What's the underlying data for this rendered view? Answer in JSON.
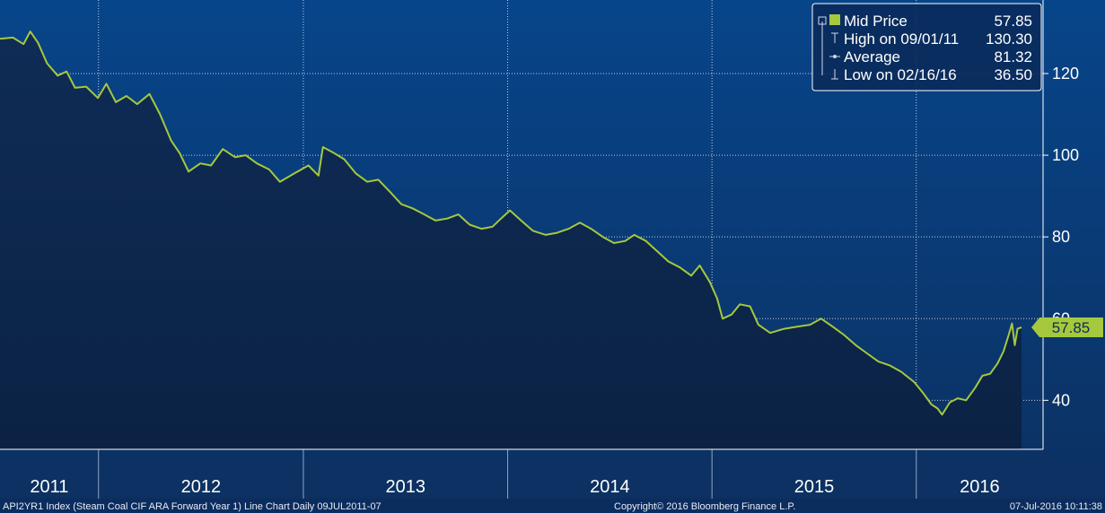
{
  "chart_data": {
    "type": "area",
    "title": "",
    "xlabel": "",
    "ylabel": "",
    "x_start": "2011-07-09",
    "x_end": "2016-07-07",
    "ylim": [
      28,
      138
    ],
    "y_ticks": [
      "120",
      "100",
      "80",
      "60",
      "40"
    ],
    "y_tick_values": [
      120,
      100,
      80,
      60,
      40
    ],
    "x_ticks": [
      "2011",
      "2012",
      "2013",
      "2014",
      "2015",
      "2016"
    ],
    "grid": true,
    "legend_position": "top-right",
    "colors": {
      "line": "#a6c83c",
      "area": "#0e2a52",
      "background_top": "#07458a",
      "background_bottom": "#0c3060",
      "grid": "#ffffff"
    },
    "series": [
      {
        "name": "Mid Price",
        "points": [
          [
            "2011-07-09",
            128.5
          ],
          [
            "2011-08-01",
            128.8
          ],
          [
            "2011-08-20",
            127.2
          ],
          [
            "2011-09-01",
            130.3
          ],
          [
            "2011-09-15",
            127.5
          ],
          [
            "2011-10-01",
            122.5
          ],
          [
            "2011-10-20",
            119.5
          ],
          [
            "2011-11-05",
            120.5
          ],
          [
            "2011-11-20",
            116.5
          ],
          [
            "2011-12-10",
            116.8
          ],
          [
            "2011-12-31",
            114.0
          ],
          [
            "2012-01-15",
            117.5
          ],
          [
            "2012-02-01",
            113.0
          ],
          [
            "2012-02-20",
            114.5
          ],
          [
            "2012-03-10",
            112.5
          ],
          [
            "2012-04-01",
            115.0
          ],
          [
            "2012-04-20",
            110.0
          ],
          [
            "2012-05-10",
            103.5
          ],
          [
            "2012-05-25",
            100.5
          ],
          [
            "2012-06-10",
            96.0
          ],
          [
            "2012-07-01",
            98.0
          ],
          [
            "2012-07-20",
            97.5
          ],
          [
            "2012-08-10",
            101.5
          ],
          [
            "2012-09-01",
            99.5
          ],
          [
            "2012-09-20",
            100.0
          ],
          [
            "2012-10-10",
            98.0
          ],
          [
            "2012-11-01",
            96.5
          ],
          [
            "2012-11-20",
            93.5
          ],
          [
            "2012-12-15",
            95.5
          ],
          [
            "2013-01-10",
            97.5
          ],
          [
            "2013-01-28",
            95.0
          ],
          [
            "2013-02-05",
            102.0
          ],
          [
            "2013-02-25",
            100.5
          ],
          [
            "2013-03-15",
            99.0
          ],
          [
            "2013-04-05",
            95.5
          ],
          [
            "2013-04-25",
            93.5
          ],
          [
            "2013-05-15",
            94.0
          ],
          [
            "2013-06-05",
            91.0
          ],
          [
            "2013-06-25",
            88.0
          ],
          [
            "2013-07-15",
            87.0
          ],
          [
            "2013-08-05",
            85.5
          ],
          [
            "2013-08-25",
            84.0
          ],
          [
            "2013-09-15",
            84.5
          ],
          [
            "2013-10-05",
            85.5
          ],
          [
            "2013-10-25",
            83.0
          ],
          [
            "2013-11-15",
            82.0
          ],
          [
            "2013-12-05",
            82.5
          ],
          [
            "2013-12-20",
            84.5
          ],
          [
            "2014-01-05",
            86.5
          ],
          [
            "2014-01-25",
            84.0
          ],
          [
            "2014-02-15",
            81.5
          ],
          [
            "2014-03-10",
            80.5
          ],
          [
            "2014-03-30",
            81.0
          ],
          [
            "2014-04-20",
            82.0
          ],
          [
            "2014-05-10",
            83.5
          ],
          [
            "2014-05-30",
            82.0
          ],
          [
            "2014-06-20",
            80.0
          ],
          [
            "2014-07-10",
            78.5
          ],
          [
            "2014-07-30",
            79.0
          ],
          [
            "2014-08-15",
            80.5
          ],
          [
            "2014-09-05",
            79.0
          ],
          [
            "2014-09-25",
            76.5
          ],
          [
            "2014-10-15",
            74.0
          ],
          [
            "2014-11-05",
            72.5
          ],
          [
            "2014-11-25",
            70.5
          ],
          [
            "2014-12-10",
            73.0
          ],
          [
            "2014-12-28",
            69.0
          ],
          [
            "2015-01-10",
            65.0
          ],
          [
            "2015-01-20",
            60.0
          ],
          [
            "2015-02-05",
            61.0
          ],
          [
            "2015-02-20",
            63.5
          ],
          [
            "2015-03-10",
            63.0
          ],
          [
            "2015-03-25",
            58.5
          ],
          [
            "2015-04-15",
            56.5
          ],
          [
            "2015-05-10",
            57.5
          ],
          [
            "2015-06-01",
            58.0
          ],
          [
            "2015-06-25",
            58.5
          ],
          [
            "2015-07-15",
            60.0
          ],
          [
            "2015-08-05",
            58.0
          ],
          [
            "2015-08-25",
            56.0
          ],
          [
            "2015-09-15",
            53.5
          ],
          [
            "2015-10-05",
            51.5
          ],
          [
            "2015-10-25",
            49.5
          ],
          [
            "2015-11-15",
            48.5
          ],
          [
            "2015-12-05",
            47.0
          ],
          [
            "2015-12-28",
            44.5
          ],
          [
            "2016-01-12",
            42.0
          ],
          [
            "2016-01-28",
            39.0
          ],
          [
            "2016-02-08",
            38.0
          ],
          [
            "2016-02-16",
            36.5
          ],
          [
            "2016-03-01",
            39.5
          ],
          [
            "2016-03-15",
            40.5
          ],
          [
            "2016-03-30",
            40.0
          ],
          [
            "2016-04-15",
            43.0
          ],
          [
            "2016-04-28",
            46.0
          ],
          [
            "2016-05-12",
            46.5
          ],
          [
            "2016-05-25",
            49.0
          ],
          [
            "2016-06-05",
            52.0
          ],
          [
            "2016-06-14",
            56.0
          ],
          [
            "2016-06-20",
            58.8
          ],
          [
            "2016-06-25",
            53.5
          ],
          [
            "2016-06-30",
            57.5
          ],
          [
            "2016-07-07",
            57.85
          ]
        ]
      }
    ],
    "legend": [
      {
        "key": "mid",
        "label": "Mid Price",
        "value": "57.85"
      },
      {
        "key": "high",
        "label": "High on 09/01/11",
        "value": "130.30"
      },
      {
        "key": "avg",
        "label": "Average",
        "value": "81.32"
      },
      {
        "key": "low",
        "label": "Low on 02/16/16",
        "value": "36.50"
      }
    ],
    "last_price_label": "57.85",
    "last_price_value": 57.85
  },
  "footer": {
    "left": "API2YR1 Index (Steam Coal CIF ARA Forward Year 1) Line Chart  Daily 09JUL2011-07",
    "center": "Copyright© 2016 Bloomberg Finance L.P.",
    "right": "07-Jul-2016 10:11:38"
  }
}
